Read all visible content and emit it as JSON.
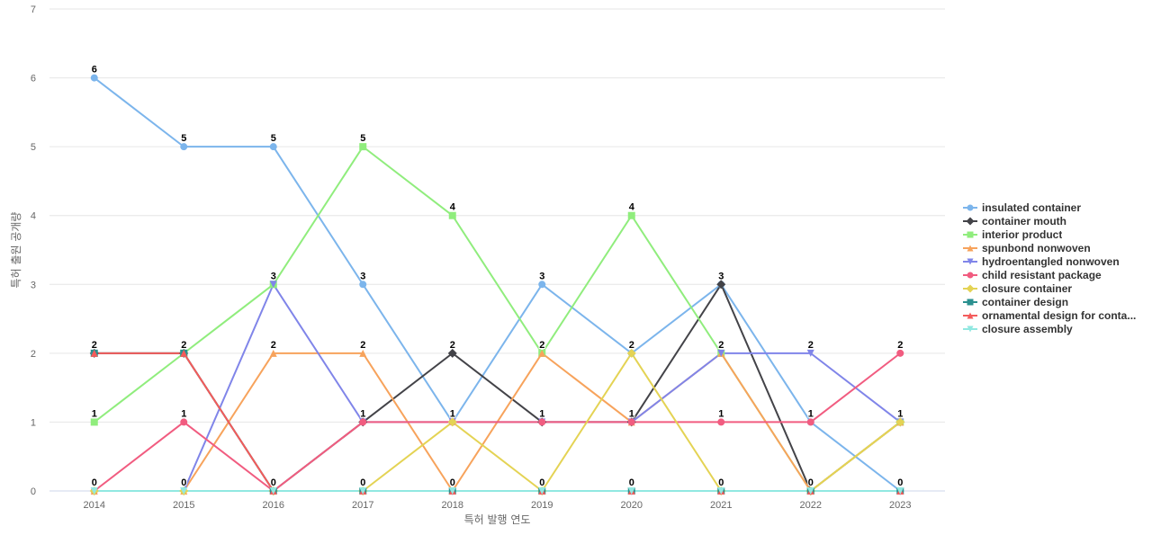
{
  "chart_data": {
    "type": "line",
    "title": "",
    "xlabel": "특허 발행 연도",
    "ylabel": "특허 출원 공개량",
    "categories": [
      "2014",
      "2015",
      "2016",
      "2017",
      "2018",
      "2019",
      "2020",
      "2021",
      "2022",
      "2023"
    ],
    "ylim": [
      0,
      7
    ],
    "yticks": [
      0,
      1,
      2,
      3,
      4,
      5,
      6,
      7
    ],
    "grid": true,
    "legend_position": "right",
    "series": [
      {
        "name": "insulated container",
        "color": "#7cb5ec",
        "marker": "circle",
        "values": [
          6,
          5,
          5,
          3,
          1,
          3,
          2,
          3,
          1,
          0
        ]
      },
      {
        "name": "container mouth",
        "color": "#434348",
        "marker": "diamond",
        "values": [
          2,
          2,
          0,
          1,
          2,
          1,
          1,
          3,
          0,
          1
        ]
      },
      {
        "name": "interior product",
        "color": "#90ed7d",
        "marker": "square",
        "values": [
          1,
          2,
          3,
          5,
          4,
          2,
          4,
          2,
          0,
          1
        ]
      },
      {
        "name": "spunbond nonwoven",
        "color": "#f7a35c",
        "marker": "triangle",
        "values": [
          0,
          0,
          2,
          2,
          0,
          2,
          1,
          2,
          0,
          1
        ]
      },
      {
        "name": "hydroentangled nonwoven",
        "color": "#8085e9",
        "marker": "triangle-down",
        "values": [
          0,
          0,
          3,
          1,
          1,
          1,
          1,
          2,
          2,
          1
        ]
      },
      {
        "name": "child resistant package",
        "color": "#f15c80",
        "marker": "circle",
        "values": [
          0,
          1,
          0,
          1,
          1,
          1,
          1,
          1,
          1,
          2
        ]
      },
      {
        "name": "closure container",
        "color": "#e4d354",
        "marker": "diamond",
        "values": [
          0,
          0,
          0,
          0,
          1,
          0,
          2,
          0,
          0,
          1
        ]
      },
      {
        "name": "container design",
        "color": "#2b908f",
        "marker": "square",
        "values": [
          2,
          2,
          0,
          0,
          0,
          0,
          0,
          0,
          0,
          0
        ]
      },
      {
        "name": "ornamental design for conta...",
        "color": "#f45b5b",
        "marker": "triangle",
        "values": [
          2,
          2,
          0,
          0,
          0,
          0,
          0,
          0,
          0,
          0
        ]
      },
      {
        "name": "closure assembly",
        "color": "#91e8e1",
        "marker": "triangle-down",
        "values": [
          0,
          0,
          0,
          0,
          0,
          0,
          0,
          0,
          0,
          0
        ]
      }
    ],
    "data_labels": [
      {
        "category": "2014",
        "labels": [
          "6",
          "2",
          "1",
          "0"
        ]
      },
      {
        "category": "2015",
        "labels": [
          "5",
          "2",
          "1",
          "0"
        ]
      },
      {
        "category": "2016",
        "labels": [
          "5",
          "3",
          "2",
          "0"
        ]
      },
      {
        "category": "2017",
        "labels": [
          "5",
          "3",
          "2",
          "1",
          "0"
        ]
      },
      {
        "category": "2018",
        "labels": [
          "4",
          "2",
          "1",
          "0"
        ]
      },
      {
        "category": "2019",
        "labels": [
          "3",
          "2",
          "1",
          "0"
        ]
      },
      {
        "category": "2020",
        "labels": [
          "4",
          "2",
          "1",
          "0"
        ]
      },
      {
        "category": "2021",
        "labels": [
          "3",
          "2",
          "1",
          "0"
        ]
      },
      {
        "category": "2022",
        "labels": [
          "2",
          "1",
          "0"
        ]
      },
      {
        "category": "2023",
        "labels": [
          "2",
          "1",
          "0"
        ]
      }
    ]
  }
}
